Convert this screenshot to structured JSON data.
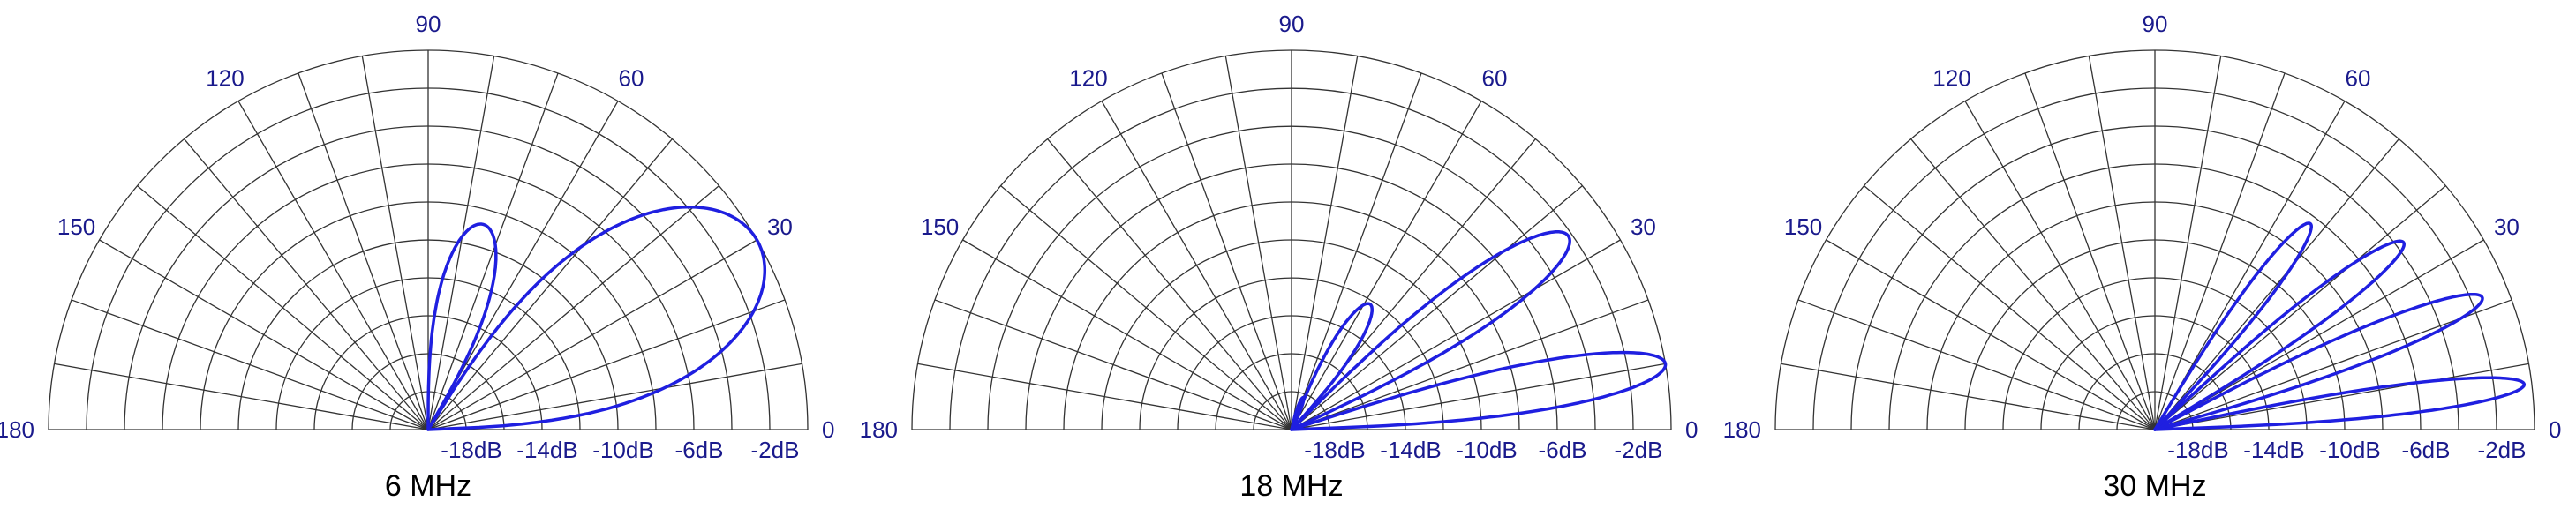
{
  "chart_data": [
    {
      "type": "polar-line",
      "title": "6 MHz",
      "angle_ticks": [
        0,
        30,
        60,
        90,
        120,
        150,
        180
      ],
      "angle_tick_labels": [
        "0",
        "30",
        "60",
        "90",
        "120",
        "150",
        "180"
      ],
      "radial_tick_labels": [
        "-18dB",
        "-14dB",
        "-10dB",
        "-6dB",
        "-2dB"
      ],
      "rlim_db": [
        -20,
        0
      ],
      "lobes": [
        {
          "peak_angle_deg": 30,
          "peak_db": 0.0,
          "half_width_deg": 28
        },
        {
          "peak_angle_deg": 75,
          "peak_db": -8.8,
          "half_width_deg": 15
        }
      ]
    },
    {
      "type": "polar-line",
      "title": "18 MHz",
      "angle_ticks": [
        0,
        30,
        60,
        90,
        120,
        150,
        180
      ],
      "angle_tick_labels": [
        "0",
        "30",
        "60",
        "90",
        "120",
        "150",
        "180"
      ],
      "radial_tick_labels": [
        "-18dB",
        "-14dB",
        "-10dB",
        "-6dB",
        "-2dB"
      ],
      "rlim_db": [
        -20,
        0
      ],
      "lobes": [
        {
          "peak_angle_deg": 10,
          "peak_db": 0.0,
          "half_width_deg": 8
        },
        {
          "peak_angle_deg": 35,
          "peak_db": -2.2,
          "half_width_deg": 10
        },
        {
          "peak_angle_deg": 58,
          "peak_db": -12.2,
          "half_width_deg": 10
        },
        {
          "peak_angle_deg": 70,
          "peak_db": -18.2,
          "half_width_deg": 7
        }
      ]
    },
    {
      "type": "polar-line",
      "title": "30 MHz",
      "angle_ticks": [
        0,
        30,
        60,
        90,
        120,
        150,
        180
      ],
      "angle_tick_labels": [
        "0",
        "30",
        "60",
        "90",
        "120",
        "150",
        "180"
      ],
      "radial_tick_labels": [
        "-18dB",
        "-14dB",
        "-10dB",
        "-6dB",
        "-2dB"
      ],
      "rlim_db": [
        -20,
        0
      ],
      "lobes": [
        {
          "peak_angle_deg": 7,
          "peak_db": -0.4,
          "half_width_deg": 5
        },
        {
          "peak_angle_deg": 22,
          "peak_db": -1.4,
          "half_width_deg": 6
        },
        {
          "peak_angle_deg": 37,
          "peak_db": -3.6,
          "half_width_deg": 6
        },
        {
          "peak_angle_deg": 53,
          "peak_db": -6.4,
          "half_width_deg": 6
        }
      ]
    }
  ],
  "colors": {
    "trace": "#1f1fe0",
    "grid": "#333333",
    "label": "#1a1a8c"
  }
}
